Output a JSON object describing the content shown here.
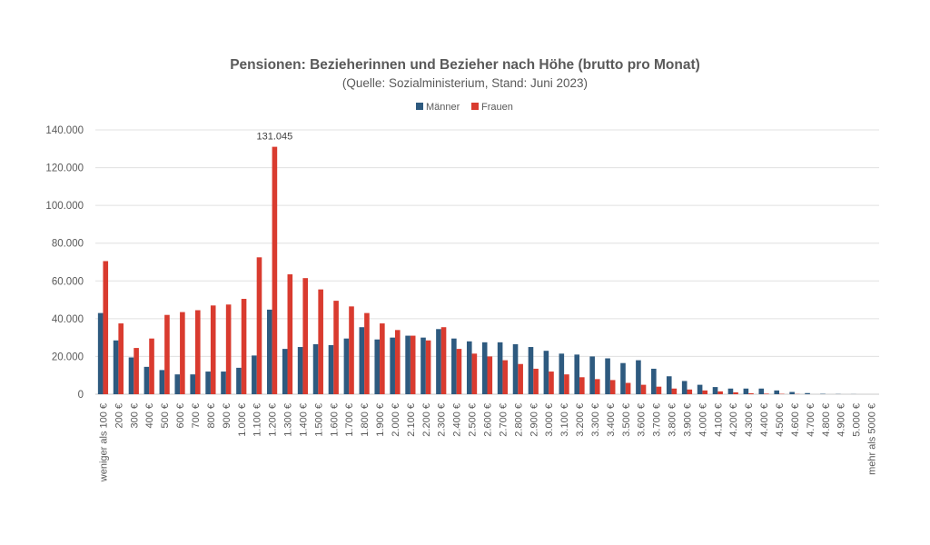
{
  "chart_data": {
    "type": "bar",
    "title": "Pensionen: Bezieherinnen und Bezieher nach Höhe (brutto pro Monat)",
    "subtitle": "(Quelle: Sozialministerium, Stand: Juni 2023)",
    "xlabel": "",
    "ylabel": "",
    "ylim": [
      0,
      140000
    ],
    "yticks": [
      0,
      20000,
      40000,
      60000,
      80000,
      100000,
      120000,
      140000
    ],
    "ytick_labels": [
      "0",
      "20.000",
      "40.000",
      "60.000",
      "80.000",
      "100.000",
      "120.000",
      "140.000"
    ],
    "grid": true,
    "legend_position": "top-center",
    "annotation": {
      "category": "1.200 €",
      "series": "Frauen",
      "text": "131.045"
    },
    "categories": [
      "weniger als 100 €",
      "200 €",
      "300 €",
      "400 €",
      "500 €",
      "600 €",
      "700 €",
      "800 €",
      "900 €",
      "1.000 €",
      "1.100 €",
      "1.200 €",
      "1.300 €",
      "1.400 €",
      "1.500 €",
      "1.600 €",
      "1.700 €",
      "1.800 €",
      "1.900 €",
      "2.000 €",
      "2.100 €",
      "2.200 €",
      "2.300 €",
      "2.400 €",
      "2.500 €",
      "2.600 €",
      "2.700 €",
      "2.800 €",
      "2.900 €",
      "3.000 €",
      "3.100 €",
      "3.200 €",
      "3.300 €",
      "3.400 €",
      "3.500 €",
      "3.600 €",
      "3.700 €",
      "3.800 €",
      "3.900 €",
      "4.000 €",
      "4.100 €",
      "4.200 €",
      "4.300 €",
      "4.400 €",
      "4.500 €",
      "4.600 €",
      "4.700 €",
      "4.800 €",
      "4.900 €",
      "5.000 €",
      "mehr als 5000 €"
    ],
    "series": [
      {
        "name": "Männer",
        "color": "#2e5a7f",
        "values": [
          43000,
          28500,
          19500,
          14500,
          12800,
          10500,
          10500,
          12000,
          12000,
          14000,
          20500,
          44800,
          24000,
          25000,
          26500,
          26000,
          29500,
          35500,
          29000,
          30000,
          31000,
          30000,
          34500,
          29500,
          28000,
          27500,
          27500,
          26500,
          25000,
          23000,
          21500,
          21000,
          20000,
          19000,
          16500,
          18000,
          13500,
          9500,
          7000,
          5000,
          3800,
          3000,
          3000,
          3000,
          2000,
          1200,
          600,
          200,
          100,
          50,
          0
        ]
      },
      {
        "name": "Frauen",
        "color": "#d93b2f",
        "values": [
          70500,
          37500,
          24500,
          29500,
          42000,
          43500,
          44500,
          47000,
          47500,
          50500,
          72500,
          131045,
          63500,
          61500,
          55500,
          49500,
          46500,
          43000,
          37500,
          34000,
          31000,
          28500,
          35500,
          24000,
          21500,
          20000,
          18000,
          16000,
          13500,
          12000,
          10500,
          9000,
          8000,
          7500,
          6000,
          5000,
          4000,
          3000,
          2500,
          2000,
          1500,
          1000,
          500,
          300,
          200,
          100,
          0,
          0,
          0,
          0,
          0
        ]
      }
    ]
  }
}
